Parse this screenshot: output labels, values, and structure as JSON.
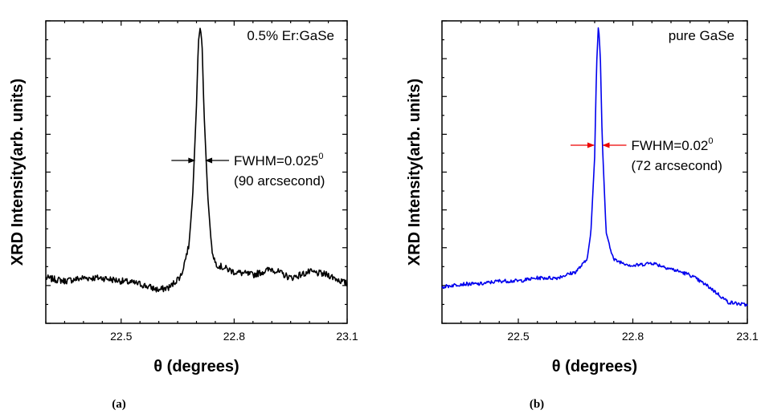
{
  "chart_data": [
    {
      "type": "line",
      "panel_label": "(a)",
      "xlabel": "θ (degrees)",
      "ylabel": "XRD Intensity(arb. units)",
      "xlim": [
        22.3,
        23.1
      ],
      "ylim": [
        0,
        1
      ],
      "x_ticks": [
        22.5,
        22.8,
        23.1
      ],
      "x_tick_labels": [
        "22.5",
        "22.8",
        "23.1"
      ],
      "y_tick_labels": "none",
      "color": "#000000",
      "legend": "0.5% Er:GaSe",
      "annotation": {
        "line1": "FWHM=0.025",
        "superscript": "0",
        "line2": "(90 arcsecond)"
      },
      "arrow_color": "#000000",
      "peak_center": 22.71,
      "fwhm_deg": 0.025,
      "series": [
        {
          "x": [
            22.3,
            22.35,
            22.4,
            22.45,
            22.5,
            22.55,
            22.6,
            22.63,
            22.66,
            22.68,
            22.69,
            22.7,
            22.705,
            22.71,
            22.715,
            22.72,
            22.73,
            22.74,
            22.75,
            22.76,
            22.8,
            22.85,
            22.9,
            22.95,
            23.0,
            23.05,
            23.1
          ],
          "y": [
            0.15,
            0.14,
            0.15,
            0.15,
            0.14,
            0.13,
            0.11,
            0.12,
            0.16,
            0.26,
            0.42,
            0.72,
            0.93,
            0.98,
            0.92,
            0.7,
            0.42,
            0.25,
            0.2,
            0.19,
            0.17,
            0.16,
            0.18,
            0.15,
            0.17,
            0.16,
            0.13
          ]
        }
      ]
    },
    {
      "type": "line",
      "panel_label": "(b)",
      "xlabel": "θ (degrees)",
      "ylabel": "XRD Intensity(arb. units)",
      "xlim": [
        22.3,
        23.1
      ],
      "ylim": [
        0,
        1
      ],
      "x_ticks": [
        22.5,
        22.8,
        23.1
      ],
      "x_tick_labels": [
        "22.5",
        "22.8",
        "23.1"
      ],
      "y_tick_labels": "none",
      "color": "#0000ee",
      "legend": "pure GaSe",
      "annotation": {
        "line1": "FWHM=0.02",
        "superscript": "0",
        "line2": "(72 arcsecond)"
      },
      "arrow_color": "#ee0000",
      "peak_center": 22.71,
      "fwhm_deg": 0.02,
      "series": [
        {
          "x": [
            22.3,
            22.35,
            22.4,
            22.45,
            22.5,
            22.55,
            22.6,
            22.65,
            22.68,
            22.69,
            22.7,
            22.705,
            22.71,
            22.715,
            22.72,
            22.73,
            22.75,
            22.8,
            22.85,
            22.9,
            22.95,
            23.0,
            23.05,
            23.1
          ],
          "y": [
            0.12,
            0.13,
            0.13,
            0.14,
            0.14,
            0.15,
            0.15,
            0.17,
            0.21,
            0.3,
            0.55,
            0.85,
            0.99,
            0.88,
            0.6,
            0.3,
            0.21,
            0.19,
            0.2,
            0.18,
            0.16,
            0.12,
            0.07,
            0.06
          ]
        }
      ]
    }
  ]
}
